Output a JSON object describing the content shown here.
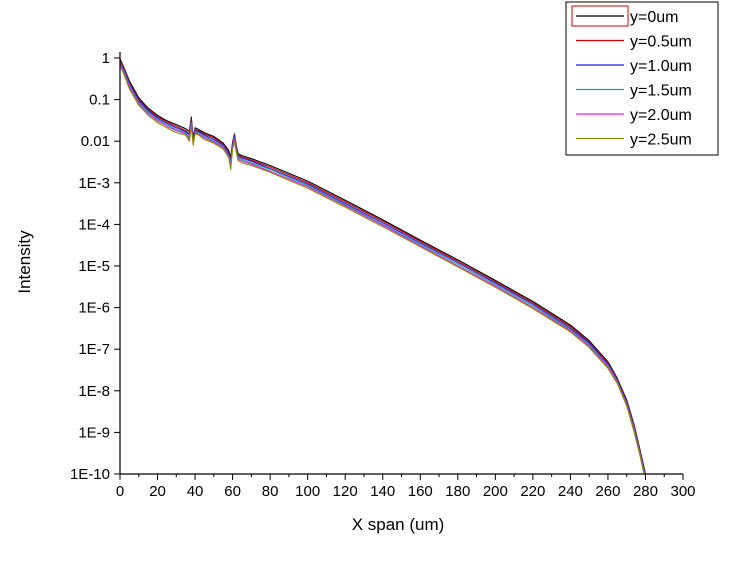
{
  "chart_data": {
    "type": "line",
    "title": "",
    "xlabel": "X span (um)",
    "ylabel": "Intensity",
    "xlim": [
      0,
      300
    ],
    "ylim": [
      1e-10,
      1
    ],
    "yscale": "log",
    "grid": false,
    "legend_position": "top-right",
    "x_ticks": [
      0,
      20,
      40,
      60,
      80,
      100,
      120,
      140,
      160,
      180,
      200,
      220,
      240,
      260,
      280,
      300
    ],
    "x_tick_labels": [
      "0",
      "20",
      "40",
      "60",
      "80",
      "100",
      "120",
      "140",
      "160",
      "180",
      "200",
      "220",
      "240",
      "260",
      "280",
      "300"
    ],
    "y_ticks": [
      1,
      0.1,
      0.01,
      0.001,
      0.0001,
      1e-05,
      1e-06,
      1e-07,
      1e-08,
      1e-09,
      1e-10
    ],
    "y_tick_labels": [
      "1",
      "0.1",
      "0.01",
      "1E-3",
      "1E-4",
      "1E-5",
      "1E-6",
      "1E-7",
      "1E-8",
      "1E-9",
      "1E-10"
    ],
    "x": [
      0,
      2,
      5,
      10,
      15,
      20,
      25,
      30,
      35,
      37,
      38,
      39,
      40,
      42,
      45,
      50,
      55,
      58,
      59,
      60,
      61,
      62,
      63,
      65,
      70,
      80,
      100,
      120,
      140,
      160,
      180,
      200,
      220,
      240,
      250,
      260,
      265,
      270,
      274,
      277,
      279,
      280
    ],
    "series": [
      {
        "name": "y=0um",
        "color": "#000000",
        "values": [
          0.95,
          0.6,
          0.28,
          0.11,
          0.062,
          0.042,
          0.031,
          0.025,
          0.02,
          0.017,
          0.038,
          0.012,
          0.021,
          0.019,
          0.016,
          0.013,
          0.009,
          0.006,
          0.004,
          0.0095,
          0.015,
          0.0075,
          0.005,
          0.0045,
          0.0038,
          0.0026,
          0.0011,
          0.00038,
          0.00013,
          4.2e-05,
          1.4e-05,
          4.5e-06,
          1.4e-06,
          3.8e-07,
          1.6e-07,
          5e-08,
          2e-08,
          6e-09,
          1.5e-09,
          4e-10,
          1.6e-10,
          1e-10
        ]
      },
      {
        "name": "y=0.5um",
        "color": "#d00000",
        "values": [
          0.9,
          0.57,
          0.26,
          0.1,
          0.058,
          0.039,
          0.029,
          0.023,
          0.018,
          0.015,
          0.034,
          0.011,
          0.019,
          0.018,
          0.015,
          0.012,
          0.0085,
          0.0055,
          0.0035,
          0.0088,
          0.014,
          0.007,
          0.0046,
          0.0042,
          0.0035,
          0.0024,
          0.001,
          0.00035,
          0.00012,
          3.9e-05,
          1.3e-05,
          4.2e-06,
          1.3e-06,
          3.5e-07,
          1.5e-07,
          4.7e-08,
          1.9e-08,
          5.6e-09,
          1.4e-09,
          3.8e-10,
          1.5e-10,
          1e-10
        ]
      },
      {
        "name": "y=1.0um",
        "color": "#2020dd",
        "values": [
          0.85,
          0.53,
          0.24,
          0.094,
          0.054,
          0.036,
          0.027,
          0.021,
          0.017,
          0.014,
          0.031,
          0.01,
          0.018,
          0.017,
          0.014,
          0.011,
          0.008,
          0.005,
          0.0032,
          0.0082,
          0.013,
          0.0065,
          0.0043,
          0.0039,
          0.0033,
          0.0022,
          0.00093,
          0.00032,
          0.00011,
          3.6e-05,
          1.2e-05,
          3.9e-06,
          1.2e-06,
          3.2e-07,
          1.4e-07,
          4.4e-08,
          1.8e-08,
          5.2e-09,
          1.3e-09,
          3.5e-10,
          1.4e-10,
          1e-10
        ]
      },
      {
        "name": "y=1.5um",
        "color": "#20a0a0",
        "values": [
          0.78,
          0.49,
          0.22,
          0.087,
          0.05,
          0.033,
          0.025,
          0.019,
          0.016,
          0.012,
          0.028,
          0.009,
          0.017,
          0.016,
          0.013,
          0.01,
          0.0075,
          0.0045,
          0.0028,
          0.0075,
          0.012,
          0.006,
          0.004,
          0.0036,
          0.003,
          0.0021,
          0.00086,
          0.0003,
          0.0001,
          3.3e-05,
          1.1e-05,
          3.6e-06,
          1.1e-06,
          3e-07,
          1.3e-07,
          4.1e-08,
          1.7e-08,
          4.9e-09,
          1.2e-09,
          3.3e-10,
          1.3e-10,
          1e-10
        ]
      },
      {
        "name": "y=2.0um",
        "color": "#e020e0",
        "values": [
          0.72,
          0.45,
          0.2,
          0.08,
          0.046,
          0.031,
          0.023,
          0.018,
          0.015,
          0.011,
          0.025,
          0.0085,
          0.016,
          0.015,
          0.012,
          0.0095,
          0.007,
          0.0042,
          0.0024,
          0.007,
          0.011,
          0.0056,
          0.0037,
          0.0033,
          0.0028,
          0.0019,
          0.0008,
          0.00028,
          9.5e-05,
          3.1e-05,
          1e-05,
          3.3e-06,
          1e-06,
          2.8e-07,
          1.2e-07,
          3.8e-08,
          1.6e-08,
          4.6e-09,
          1.1e-09,
          3.1e-10,
          1.2e-10,
          1e-10
        ]
      },
      {
        "name": "y=2.5um",
        "color": "#8a8a00",
        "values": [
          0.65,
          0.41,
          0.18,
          0.073,
          0.042,
          0.028,
          0.021,
          0.016,
          0.014,
          0.01,
          0.022,
          0.008,
          0.015,
          0.014,
          0.011,
          0.009,
          0.0065,
          0.004,
          0.0021,
          0.0065,
          0.0095,
          0.0052,
          0.0034,
          0.003,
          0.0026,
          0.0018,
          0.00074,
          0.00026,
          8.8e-05,
          2.9e-05,
          9.5e-06,
          3.1e-06,
          9.5e-07,
          2.6e-07,
          1.1e-07,
          3.5e-08,
          1.5e-08,
          4.3e-09,
          1e-09,
          2.9e-10,
          1.1e-10,
          1e-10
        ]
      }
    ]
  }
}
